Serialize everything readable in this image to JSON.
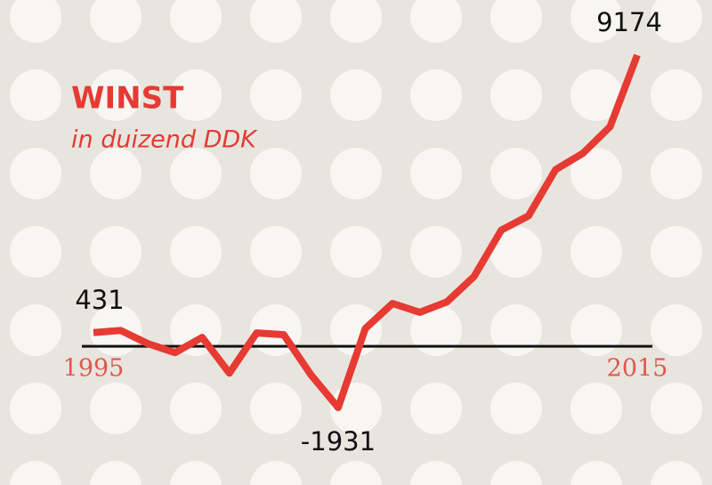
{
  "chart_data": {
    "type": "line",
    "title": "WINST",
    "subtitle": "in duizend DDK",
    "categories": [
      "1995",
      null,
      null,
      null,
      null,
      null,
      null,
      null,
      null,
      null,
      null,
      null,
      null,
      null,
      null,
      null,
      null,
      null,
      null,
      null,
      "2015"
    ],
    "series": [
      {
        "name": "WINST",
        "color": "#e63a33",
        "values": [
          431,
          500,
          85,
          -200,
          280,
          -845,
          420,
          365,
          -900,
          -1931,
          560,
          1350,
          1070,
          1400,
          2200,
          3660,
          4110,
          5570,
          6080,
          6920,
          9174
        ]
      }
    ],
    "labeled_points": [
      0,
      9,
      20
    ]
  }
}
